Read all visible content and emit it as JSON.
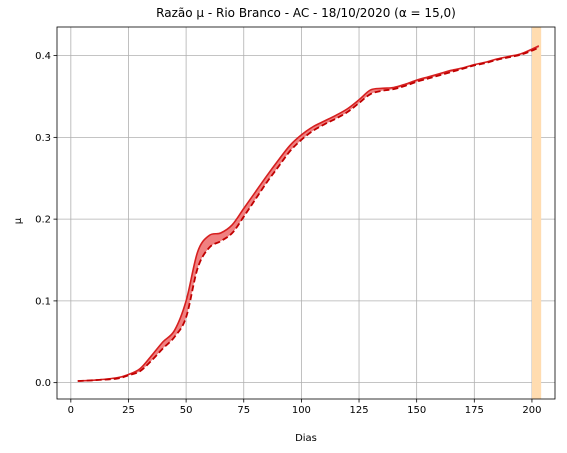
{
  "chart_data": {
    "type": "line",
    "title": "Razão µ - Rio Branco - AC - 18/10/2020 (α = 15,0)",
    "xlabel": "Dias",
    "ylabel": "µ",
    "xlim": [
      -6,
      210
    ],
    "ylim": [
      -0.02,
      0.435
    ],
    "xticks": [
      0,
      25,
      50,
      75,
      100,
      125,
      150,
      175,
      200
    ],
    "xtick_labels": [
      "0",
      "25",
      "50",
      "75",
      "100",
      "125",
      "150",
      "175",
      "200"
    ],
    "yticks": [
      0.0,
      0.1,
      0.2,
      0.3,
      0.4
    ],
    "ytick_labels": [
      "0.0",
      "0.1",
      "0.2",
      "0.3",
      "0.4"
    ],
    "grid": true,
    "highlight_band": {
      "x_start": 200,
      "x_end": 204,
      "color": "#ffdcb0"
    },
    "colors": {
      "line": "#d62020",
      "band_fill": "#f08080",
      "dashed": "#c00000"
    },
    "x": [
      3,
      10,
      20,
      25,
      30,
      35,
      40,
      45,
      50,
      55,
      60,
      65,
      70,
      75,
      80,
      85,
      90,
      95,
      100,
      105,
      110,
      115,
      120,
      125,
      130,
      135,
      140,
      145,
      150,
      155,
      160,
      165,
      170,
      175,
      180,
      185,
      190,
      195,
      200,
      203
    ],
    "series": [
      {
        "role": "upper",
        "values": [
          0.002,
          0.003,
          0.006,
          0.01,
          0.017,
          0.033,
          0.05,
          0.064,
          0.1,
          0.16,
          0.18,
          0.183,
          0.193,
          0.213,
          0.233,
          0.253,
          0.272,
          0.29,
          0.303,
          0.313,
          0.32,
          0.327,
          0.335,
          0.346,
          0.358,
          0.36,
          0.361,
          0.365,
          0.37,
          0.374,
          0.378,
          0.382,
          0.385,
          0.389,
          0.392,
          0.396,
          0.399,
          0.402,
          0.408,
          0.412
        ]
      },
      {
        "role": "lower",
        "values": [
          0.002,
          0.003,
          0.005,
          0.009,
          0.014,
          0.027,
          0.042,
          0.056,
          0.08,
          0.14,
          0.165,
          0.173,
          0.183,
          0.203,
          0.224,
          0.245,
          0.264,
          0.283,
          0.297,
          0.308,
          0.316,
          0.323,
          0.331,
          0.342,
          0.353,
          0.357,
          0.359,
          0.363,
          0.368,
          0.372,
          0.376,
          0.38,
          0.384,
          0.388,
          0.391,
          0.395,
          0.398,
          0.401,
          0.406,
          0.41
        ]
      }
    ]
  }
}
